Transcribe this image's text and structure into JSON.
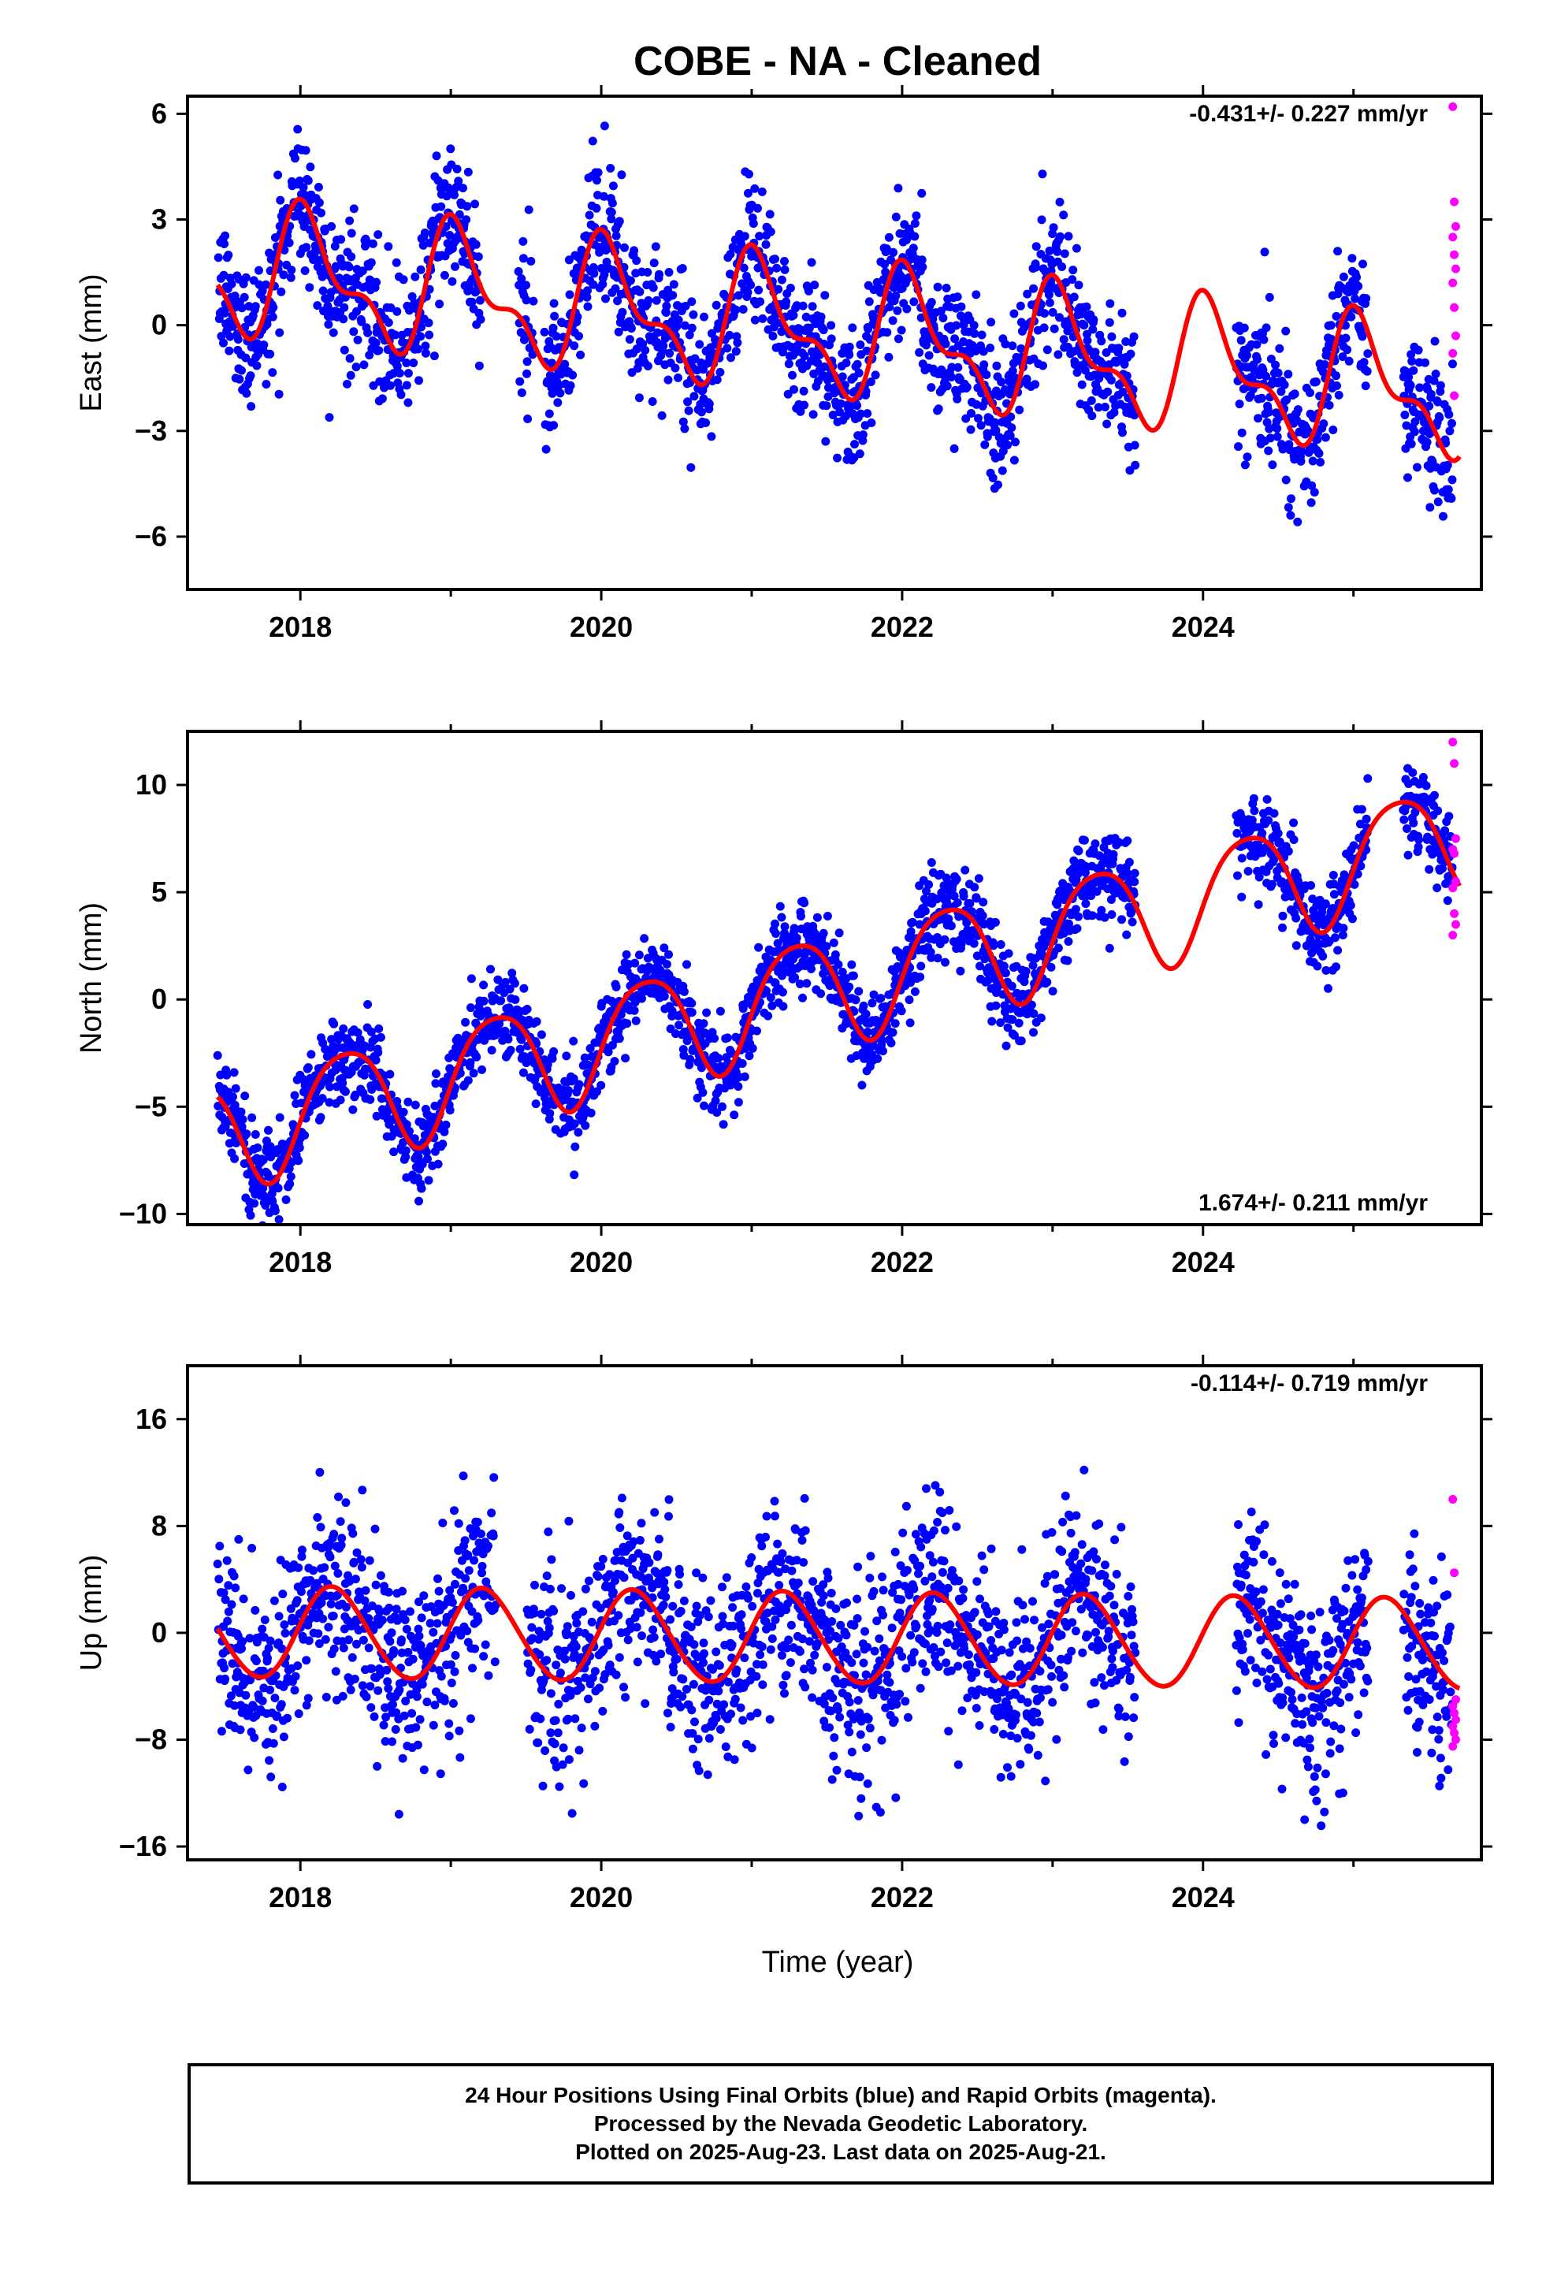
{
  "title": "COBE  - NA - Cleaned",
  "xlabel": "Time (year)",
  "colors": {
    "final": "#0000ff",
    "rapid": "#ff00ff",
    "model": "#ff0000",
    "frame": "#000000"
  },
  "footer": {
    "line1": "24 Hour Positions Using Final Orbits (blue) and Rapid Orbits (magenta).",
    "line2": "Processed by the Nevada Geodetic Laboratory.",
    "line3": "Plotted on 2025-Aug-23. Last data on 2025-Aug-21."
  },
  "chart_data": [
    {
      "type": "scatter",
      "ylabel": "East (mm)",
      "rate_label": "-0.431+/- 0.227 mm/yr",
      "xlim": [
        2017.25,
        2025.85
      ],
      "ylim": [
        -7.5,
        6.5
      ],
      "xticks": [
        2018,
        2020,
        2022,
        2024
      ],
      "yticks": [
        6,
        3,
        0,
        -3,
        -6
      ],
      "model": {
        "offset": -0.15,
        "trend": -0.431,
        "ref_year": 2021.5,
        "annual_amp": 1.6,
        "annual_phase": 1.2,
        "semiannual_amp": 0.8,
        "semiannual_phase": 2.0
      },
      "gaps": [
        [
          2019.2,
          2019.45
        ],
        [
          2019.55,
          2019.62
        ],
        [
          2023.55,
          2024.22
        ],
        [
          2025.1,
          2025.33
        ]
      ],
      "noise": 1.0,
      "final_end": 2025.66,
      "rapid": {
        "x_start": 2025.66,
        "x_end": 2025.68,
        "values": [
          6.2,
          3.5,
          2.8,
          2.5,
          2.0,
          1.6,
          1.2,
          0.5,
          -0.3,
          -0.8,
          -2.0
        ]
      }
    },
    {
      "type": "scatter",
      "ylabel": "North (mm)",
      "rate_label": "1.674+/- 0.211 mm/yr",
      "xlim": [
        2017.25,
        2025.85
      ],
      "ylim": [
        -10.5,
        12.5
      ],
      "xticks": [
        2018,
        2020,
        2022,
        2024
      ],
      "yticks": [
        10,
        5,
        0,
        -5,
        -10
      ],
      "model": {
        "offset": 0.6,
        "trend": 1.674,
        "ref_year": 2021.5,
        "annual_amp": 2.6,
        "annual_phase": -0.3,
        "semiannual_amp": 0.4,
        "semiannual_phase": 1.0
      },
      "gaps": [
        [
          2023.55,
          2024.22
        ],
        [
          2025.1,
          2025.33
        ]
      ],
      "noise": 1.0,
      "final_end": 2025.66,
      "rapid": {
        "x_start": 2025.66,
        "x_end": 2025.68,
        "values": [
          12.0,
          11.0,
          7.5,
          7.0,
          6.8,
          5.5,
          5.2,
          4.0,
          3.5,
          3.0
        ]
      }
    },
    {
      "type": "scatter",
      "ylabel": "Up (mm)",
      "rate_label": "-0.114+/- 0.719 mm/yr",
      "xlim": [
        2017.25,
        2025.85
      ],
      "ylim": [
        -17,
        20
      ],
      "xticks": [
        2018,
        2020,
        2022,
        2024
      ],
      "yticks": [
        16,
        8,
        0,
        -8,
        -16
      ],
      "model": {
        "offset": -0.4,
        "trend": -0.114,
        "ref_year": 2021.5,
        "annual_amp": 3.4,
        "annual_phase": 0.2,
        "semiannual_amp": 0.2,
        "semiannual_phase": 0.0
      },
      "gaps": [
        [
          2019.3,
          2019.5
        ],
        [
          2023.55,
          2024.22
        ],
        [
          2025.1,
          2025.33
        ]
      ],
      "noise": 3.6,
      "final_end": 2025.66,
      "rapid": {
        "x_start": 2025.66,
        "x_end": 2025.68,
        "values": [
          10.0,
          4.5,
          -5.0,
          -5.5,
          -6.0,
          -6.5,
          -7.0,
          -7.5,
          -8.0,
          -8.5
        ]
      }
    }
  ]
}
